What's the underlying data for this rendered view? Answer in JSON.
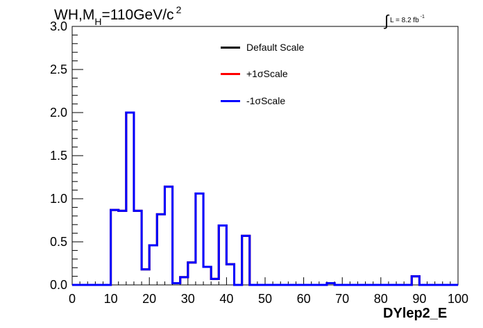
{
  "title": {
    "prefix": "WH,M",
    "subscript": "H",
    "main": "=110GeV/c",
    "superscript": "2"
  },
  "lumi": {
    "integral": "∫",
    "text": "L = 8.2 fb",
    "superscript": "-1"
  },
  "legend": {
    "items": [
      {
        "label": "Default Scale",
        "color": "#000000"
      },
      {
        "label": "+1σScale",
        "color": "#ff0000"
      },
      {
        "label": "-1σScale",
        "color": "#0000ff"
      }
    ]
  },
  "chart_data": {
    "type": "line",
    "xlabel": "DYlep2_E",
    "ylabel": "",
    "xlim": [
      0,
      100
    ],
    "ylim": [
      0,
      3.0
    ],
    "xticks": [
      0,
      10,
      20,
      30,
      40,
      50,
      60,
      70,
      80,
      90,
      100
    ],
    "xtick_labels": [
      "0",
      "10",
      "20",
      "30",
      "40",
      "50",
      "60",
      "70",
      "80",
      "90",
      "100"
    ],
    "yticks": [
      0,
      0.5,
      1.0,
      1.5,
      2.0,
      2.5,
      3.0
    ],
    "ytick_labels": [
      "0.0",
      "0.5",
      "1.0",
      "1.5",
      "2.0",
      "2.5",
      "3.0"
    ],
    "grid": false,
    "legend_position": "top-center",
    "bin_edges": [
      0,
      2,
      4,
      6,
      8,
      10,
      12,
      14,
      16,
      18,
      20,
      22,
      24,
      26,
      28,
      30,
      32,
      34,
      36,
      38,
      40,
      42,
      44,
      46,
      48,
      50,
      52,
      54,
      56,
      58,
      60,
      62,
      64,
      66,
      68,
      70,
      72,
      74,
      76,
      78,
      80,
      82,
      84,
      86,
      88,
      90,
      92,
      94,
      96,
      98,
      100
    ],
    "series": [
      {
        "name": "Default Scale",
        "color": "#000000",
        "values": [
          0,
          0,
          0,
          0,
          0,
          0.87,
          0.86,
          2.0,
          0.86,
          0.18,
          0.46,
          0.82,
          1.14,
          0.02,
          0.09,
          0.26,
          1.06,
          0.21,
          0.07,
          0.69,
          0.24,
          0,
          0.57,
          0,
          0,
          0,
          0,
          0,
          0,
          0,
          0,
          0,
          0,
          0.02,
          0,
          0,
          0,
          0,
          0,
          0,
          0,
          0,
          0,
          0,
          0.1,
          0,
          0,
          0,
          0,
          0
        ]
      },
      {
        "name": "+1σScale",
        "color": "#ff0000",
        "values": [
          0,
          0,
          0,
          0,
          0,
          0.87,
          0.86,
          2.0,
          0.86,
          0.18,
          0.46,
          0.82,
          1.14,
          0.02,
          0.09,
          0.26,
          1.06,
          0.21,
          0.07,
          0.69,
          0.24,
          0,
          0.57,
          0,
          0,
          0,
          0,
          0,
          0,
          0,
          0,
          0,
          0,
          0.02,
          0,
          0,
          0,
          0,
          0,
          0,
          0,
          0,
          0,
          0,
          0.1,
          0,
          0,
          0,
          0,
          0
        ]
      },
      {
        "name": "-1σScale",
        "color": "#0000ff",
        "values": [
          0,
          0,
          0,
          0,
          0,
          0.87,
          0.86,
          2.0,
          0.86,
          0.18,
          0.46,
          0.82,
          1.14,
          0.02,
          0.09,
          0.26,
          1.06,
          0.21,
          0.07,
          0.69,
          0.24,
          0,
          0.57,
          0,
          0,
          0,
          0,
          0,
          0,
          0,
          0,
          0,
          0,
          0.02,
          0,
          0,
          0,
          0,
          0,
          0,
          0,
          0,
          0,
          0,
          0.1,
          0,
          0,
          0,
          0,
          0
        ]
      }
    ]
  }
}
